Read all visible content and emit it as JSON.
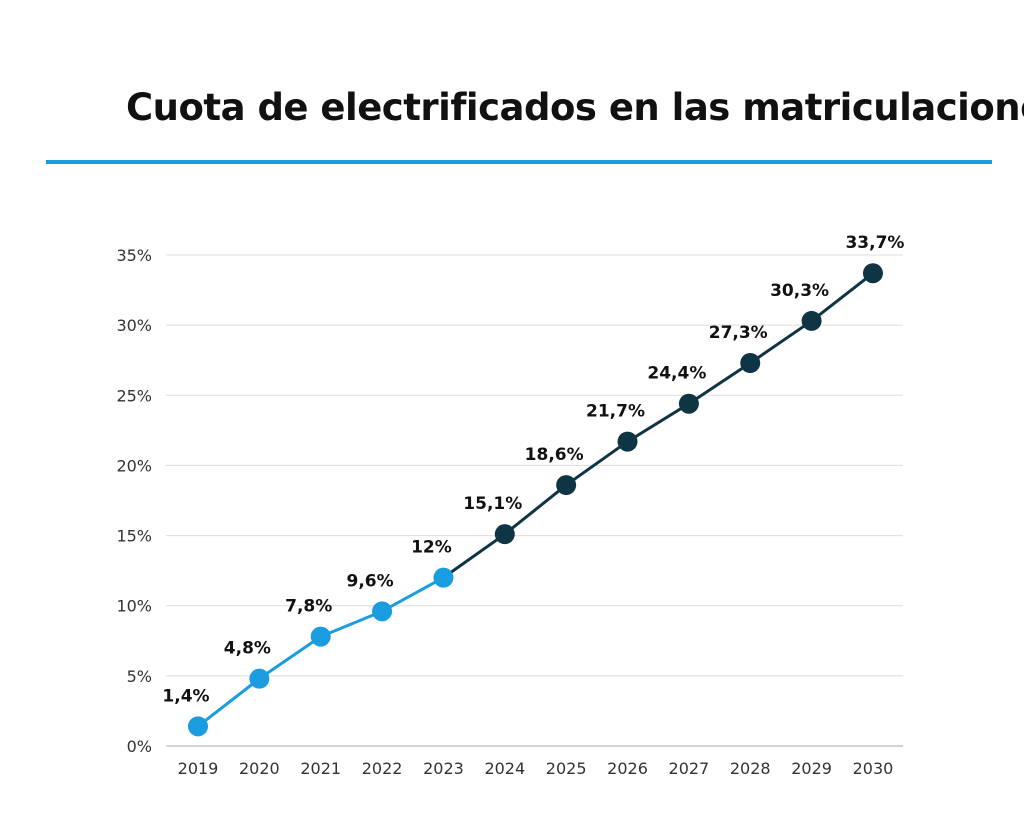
{
  "chart_data": {
    "type": "line",
    "title": "Cuota de electrificados en las matriculaciones",
    "categories": [
      "2019",
      "2020",
      "2021",
      "2022",
      "2023",
      "2024",
      "2025",
      "2026",
      "2027",
      "2028",
      "2029",
      "2030"
    ],
    "values": [
      1.4,
      4.8,
      7.8,
      9.6,
      12,
      15.1,
      18.6,
      21.7,
      24.4,
      27.3,
      30.3,
      33.7
    ],
    "data_labels": [
      "1,4%",
      "4,8%",
      "7,8%",
      "9,6%",
      "12%",
      "15,1%",
      "18,6%",
      "21,7%",
      "24,4%",
      "27,3%",
      "30,3%",
      "33,7%"
    ],
    "yticks": [
      0,
      5,
      10,
      15,
      20,
      25,
      30,
      35
    ],
    "ytick_labels": [
      "0%",
      "5%",
      "10%",
      "15%",
      "20%",
      "25%",
      "30%",
      "35%"
    ],
    "ylim": [
      0,
      35
    ],
    "grid": true,
    "xlabel": "",
    "ylabel": "",
    "historical_last_index": 4,
    "colors": {
      "historical": "#1a9de0",
      "forecast": "#0f3444",
      "title_rule": "#1a9de0",
      "grid": "#dddddd"
    }
  }
}
